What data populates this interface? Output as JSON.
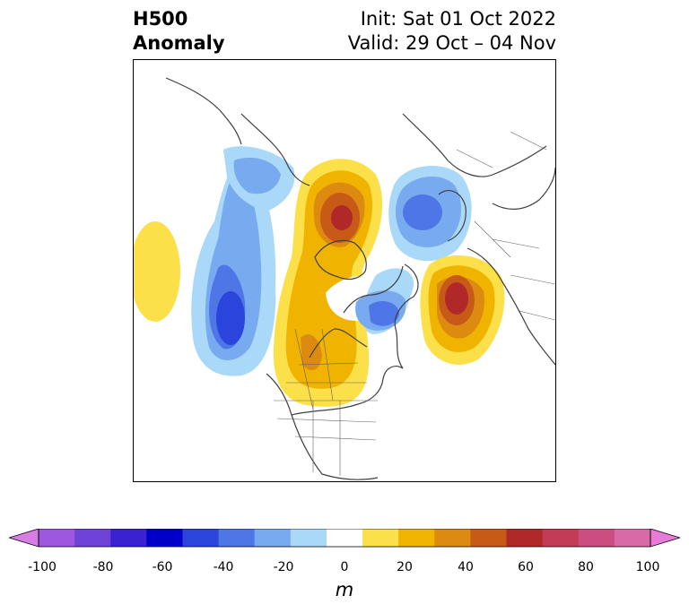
{
  "title": {
    "line1": "H500",
    "line2": "Anomaly",
    "init": "Init: Sat 01 Oct 2022",
    "valid": "Valid: 29 Oct – 04 Nov"
  },
  "colorbar": {
    "ticks": [
      "-100",
      "-80",
      "-60",
      "-40",
      "-20",
      "0",
      "20",
      "40",
      "60",
      "80",
      "100"
    ],
    "unit": "m",
    "colors": [
      "#d87ce6",
      "#9e58e0",
      "#6f42d8",
      "#3a22d2",
      "#0000c8",
      "#2a44dc",
      "#4f76e6",
      "#78aaf0",
      "#aad8f8",
      "#ffffff",
      "#fce04a",
      "#f0b400",
      "#dc8a10",
      "#c85a18",
      "#b02828",
      "#c23c58",
      "#cc4e80",
      "#d86aa8",
      "#e87ad8"
    ]
  }
}
